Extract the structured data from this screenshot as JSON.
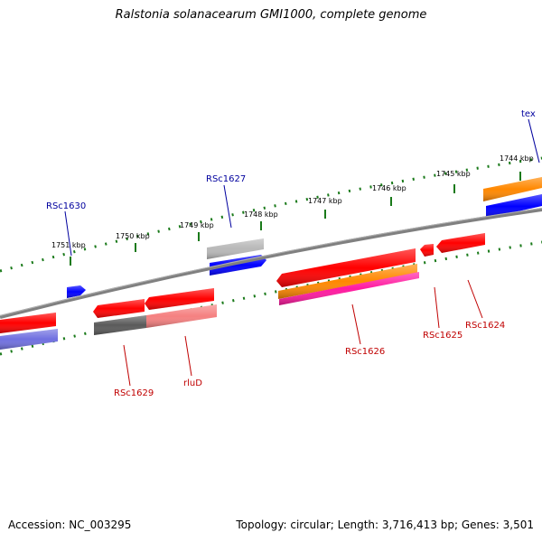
{
  "title": "Ralstonia solanacearum GMI1000, complete genome",
  "footer": {
    "accession": "Accession: NC_003295",
    "summary": "Topology: circular; Length: 3,716,413 bp; Genes: 3,501"
  },
  "colors": {
    "backbone": "#808080",
    "tick": "#1a7a1a",
    "forward_label": "#00009e",
    "reverse_label": "#c00000",
    "red": "#ff0000",
    "blue": "#0000ff",
    "orange": "#ff8800",
    "magenta": "#ff1aa0",
    "violet": "#7070e0",
    "dark_gray": "#5a5a5a",
    "light_gray": "#b8b8b8",
    "salmon": "#f58080"
  },
  "ruler": {
    "labels": [
      "1751 kbp",
      "1750 kbp",
      "1749 kbp",
      "1748 kbp",
      "1747 kbp",
      "1746 kbp",
      "1745 kbp",
      "1744 kbp"
    ]
  },
  "features": {
    "forward_labels": [
      "RSc1630",
      "RSc1627",
      "tex"
    ],
    "reverse_labels": [
      "RSc1629",
      "rluD",
      "RSc1626",
      "RSc1625",
      "RSc1624"
    ]
  }
}
